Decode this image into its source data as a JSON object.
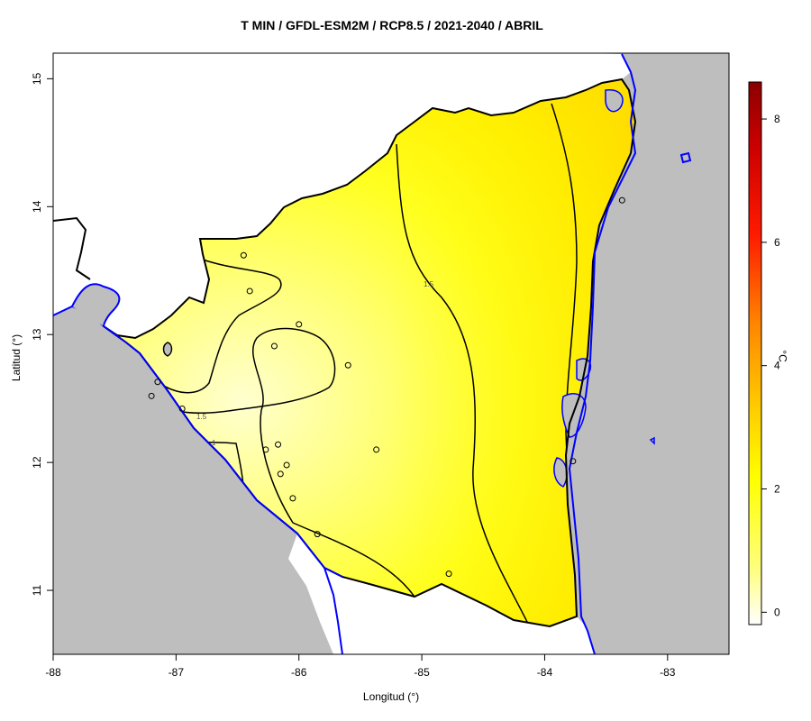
{
  "title": "T MIN / GFDL-ESM2M / RCP8.5 / 2021-2040 / ABRIL",
  "xlabel": "Longitud (°)",
  "ylabel": "Latitud (°)",
  "colorbar": {
    "label": "°C",
    "ticks": [
      0,
      2,
      4,
      6,
      8
    ],
    "range": [
      -0.2,
      8.6
    ],
    "colors": [
      "#ffffff",
      "#ffff66",
      "#ffff00",
      "#ffcc00",
      "#ff8800",
      "#ff0000",
      "#990000"
    ]
  },
  "colors": {
    "land_outside": "#bebebe",
    "ocean": "#bebebe",
    "coastline": "#0000ff",
    "border": "#000000",
    "field_low": "#ffffc0",
    "field_mid": "#ffff00",
    "field_high": "#ffd800"
  },
  "map": {
    "xlim": [
      -88,
      -82.5
    ],
    "ylim": [
      10.5,
      15.2
    ],
    "xticks": [
      -88,
      -87,
      -86,
      -85,
      -84,
      -83
    ],
    "yticks": [
      11,
      12,
      13,
      14,
      15
    ],
    "contour_labels": [
      "1.5",
      "1",
      "1.5"
    ],
    "stations": [
      [
        -86.45,
        13.62
      ],
      [
        -86.4,
        13.34
      ],
      [
        -86.0,
        13.08
      ],
      [
        -86.2,
        12.91
      ],
      [
        -85.6,
        12.76
      ],
      [
        -87.15,
        12.63
      ],
      [
        -87.2,
        12.52
      ],
      [
        -86.95,
        12.42
      ],
      [
        -86.27,
        12.1
      ],
      [
        -86.17,
        12.14
      ],
      [
        -86.1,
        11.98
      ],
      [
        -86.15,
        11.91
      ],
      [
        -86.05,
        11.72
      ],
      [
        -85.37,
        12.1
      ],
      [
        -85.85,
        11.44
      ],
      [
        -84.78,
        11.13
      ],
      [
        -83.77,
        12.01
      ],
      [
        -83.37,
        14.05
      ]
    ]
  }
}
